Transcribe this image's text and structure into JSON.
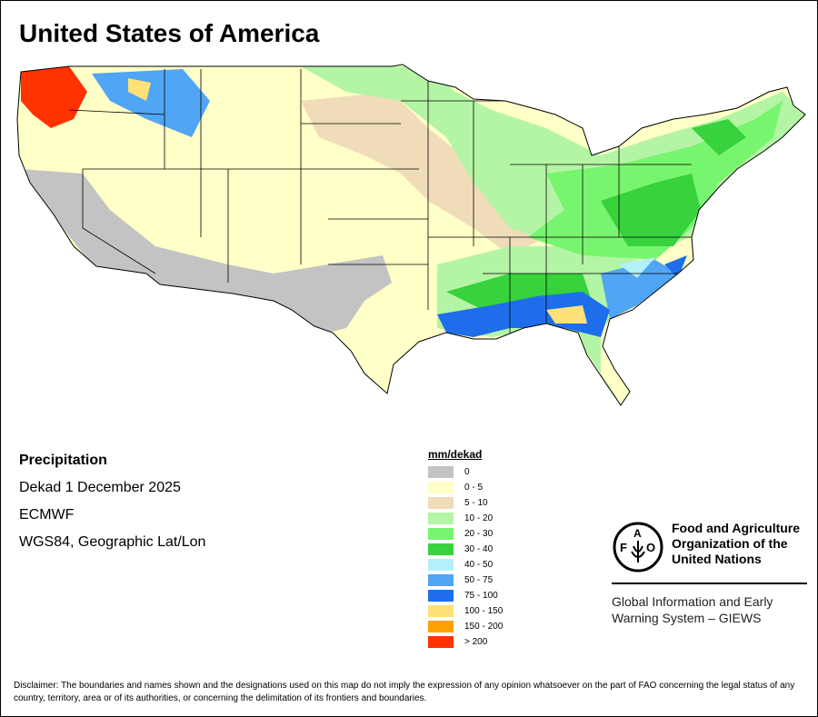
{
  "title": "United States of America",
  "info": {
    "variable": "Precipitation",
    "period": "Dekad 1 December 2025",
    "source": "ECMWF",
    "projection": "WGS84, Geographic Lat/Lon"
  },
  "legend": {
    "title": "mm/dekad",
    "items": [
      {
        "label": "0",
        "color": "#c3c3c3"
      },
      {
        "label": "0 - 5",
        "color": "#ffffc8"
      },
      {
        "label": "5 - 10",
        "color": "#f0dcb9"
      },
      {
        "label": "10 - 20",
        "color": "#b4f5a5"
      },
      {
        "label": "20 - 30",
        "color": "#78f56e"
      },
      {
        "label": "30 - 40",
        "color": "#37d23c"
      },
      {
        "label": "40 - 50",
        "color": "#b4f0fa"
      },
      {
        "label": "50 - 75",
        "color": "#50a5f5"
      },
      {
        "label": "75 - 100",
        "color": "#1e6eeb"
      },
      {
        "label": "100 - 150",
        "color": "#ffe178"
      },
      {
        "label": "150 - 200",
        "color": "#ffa000"
      },
      {
        "label": "> 200",
        "color": "#ff3200"
      }
    ]
  },
  "fao": {
    "name_line1": "Food and Agriculture",
    "name_line2": "Organization of the",
    "name_line3": "United Nations",
    "logo_text": "FAO FIAT PANIS",
    "giews_line1": "Global Information and Early",
    "giews_line2": "Warning System – GIEWS"
  },
  "disclaimer": "Disclaimer: The boundaries and names shown and the designations used on this map do not imply the expression of any opinion whatsoever on the part of FAO concerning the legal status of any country, territory, area or of its authorities, or concerning the delimitation of its frontiers and boundaries."
}
